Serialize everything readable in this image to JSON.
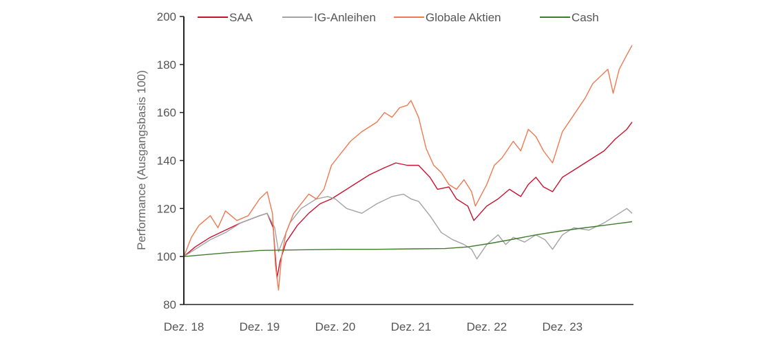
{
  "chart_data": {
    "type": "line",
    "title": "",
    "xlabel": "",
    "ylabel": "Performance (Ausgangsbasis 100)",
    "ylim": [
      80,
      200
    ],
    "yticks": [
      80,
      100,
      120,
      140,
      160,
      180,
      200
    ],
    "xlim": [
      2018.95,
      2024.87
    ],
    "xticks": [
      {
        "label": "Dez. 18",
        "x": 2018.95
      },
      {
        "label": "Dez. 19",
        "x": 2019.95
      },
      {
        "label": "Dez. 20",
        "x": 2020.95
      },
      {
        "label": "Dez. 21",
        "x": 2021.95
      },
      {
        "label": "Dez. 22",
        "x": 2022.95
      },
      {
        "label": "Dez. 23",
        "x": 2023.95
      }
    ],
    "grid": false,
    "legend": "top",
    "series": [
      {
        "name": "SAA",
        "color": "#c8102e",
        "x": [
          2018.95,
          2019.1,
          2019.3,
          2019.5,
          2019.7,
          2019.95,
          2020.05,
          2020.13,
          2020.18,
          2020.22,
          2020.3,
          2020.45,
          2020.6,
          2020.75,
          2020.9,
          2021.05,
          2021.2,
          2021.4,
          2021.6,
          2021.75,
          2021.9,
          2022.05,
          2022.2,
          2022.3,
          2022.45,
          2022.55,
          2022.7,
          2022.78,
          2022.95,
          2023.1,
          2023.25,
          2023.4,
          2023.5,
          2023.6,
          2023.7,
          2023.82,
          2023.95,
          2024.1,
          2024.3,
          2024.5,
          2024.65,
          2024.8,
          2024.87
        ],
        "y": [
          100,
          104,
          108,
          111,
          114,
          117,
          118,
          112,
          91,
          98,
          106,
          113,
          118,
          122,
          124,
          127,
          130,
          134,
          137,
          139,
          138,
          138,
          133,
          128,
          129,
          124,
          121,
          115,
          121,
          124,
          128,
          125,
          130,
          133,
          129,
          127,
          133,
          136,
          140,
          144,
          149,
          153,
          156
        ]
      },
      {
        "name": "IG-Anleihen",
        "color": "#a3a3a3",
        "x": [
          2018.95,
          2019.1,
          2019.3,
          2019.5,
          2019.7,
          2019.95,
          2020.05,
          2020.15,
          2020.2,
          2020.25,
          2020.35,
          2020.5,
          2020.7,
          2020.85,
          2020.95,
          2021.1,
          2021.3,
          2021.5,
          2021.7,
          2021.85,
          2021.95,
          2022.05,
          2022.2,
          2022.35,
          2022.5,
          2022.65,
          2022.75,
          2022.82,
          2022.95,
          2023.1,
          2023.2,
          2023.3,
          2023.45,
          2023.6,
          2023.72,
          2023.82,
          2023.95,
          2024.1,
          2024.3,
          2024.5,
          2024.65,
          2024.8,
          2024.87
        ],
        "y": [
          100,
          103,
          107,
          110,
          114,
          117,
          118,
          112,
          102,
          106,
          114,
          120,
          124,
          125,
          124,
          120,
          118,
          122,
          125,
          126,
          124,
          123,
          117,
          110,
          107,
          105,
          103,
          99,
          105,
          109,
          105,
          108,
          106,
          109,
          107,
          103,
          109,
          112,
          111,
          114,
          117,
          120,
          118
        ]
      },
      {
        "name": "Globale Aktien",
        "color": "#f07850",
        "x": [
          2018.95,
          2019.05,
          2019.15,
          2019.3,
          2019.4,
          2019.5,
          2019.65,
          2019.8,
          2019.95,
          2020.05,
          2020.12,
          2020.16,
          2020.2,
          2020.24,
          2020.3,
          2020.4,
          2020.5,
          2020.6,
          2020.7,
          2020.8,
          2020.9,
          2021.0,
          2021.15,
          2021.3,
          2021.5,
          2021.6,
          2021.7,
          2021.8,
          2021.9,
          2021.95,
          2022.05,
          2022.15,
          2022.25,
          2022.35,
          2022.45,
          2022.55,
          2022.65,
          2022.75,
          2022.8,
          2022.95,
          2023.05,
          2023.15,
          2023.3,
          2023.4,
          2023.5,
          2023.6,
          2023.7,
          2023.82,
          2023.95,
          2024.1,
          2024.25,
          2024.35,
          2024.45,
          2024.55,
          2024.62,
          2024.7,
          2024.8,
          2024.87
        ],
        "y": [
          100,
          108,
          113,
          117,
          112,
          119,
          115,
          117,
          124,
          127,
          118,
          96,
          86,
          100,
          110,
          118,
          122,
          126,
          124,
          128,
          138,
          142,
          148,
          152,
          156,
          160,
          158,
          162,
          163,
          165,
          158,
          145,
          138,
          135,
          130,
          128,
          132,
          127,
          121,
          130,
          138,
          141,
          148,
          144,
          153,
          150,
          144,
          139,
          152,
          159,
          166,
          172,
          175,
          178,
          168,
          178,
          184,
          188
        ]
      },
      {
        "name": "Cash",
        "color": "#3e7b2c",
        "x": [
          2018.95,
          2019.5,
          2019.95,
          2020.5,
          2021.0,
          2021.5,
          2022.0,
          2022.4,
          2022.7,
          2023.0,
          2023.3,
          2023.6,
          2023.9,
          2024.2,
          2024.5,
          2024.87
        ],
        "y": [
          100,
          101.5,
          102.5,
          102.8,
          103,
          103,
          103.2,
          103.3,
          104,
          105.5,
          107.2,
          109,
          110.5,
          111.8,
          113,
          114.5
        ]
      }
    ]
  }
}
